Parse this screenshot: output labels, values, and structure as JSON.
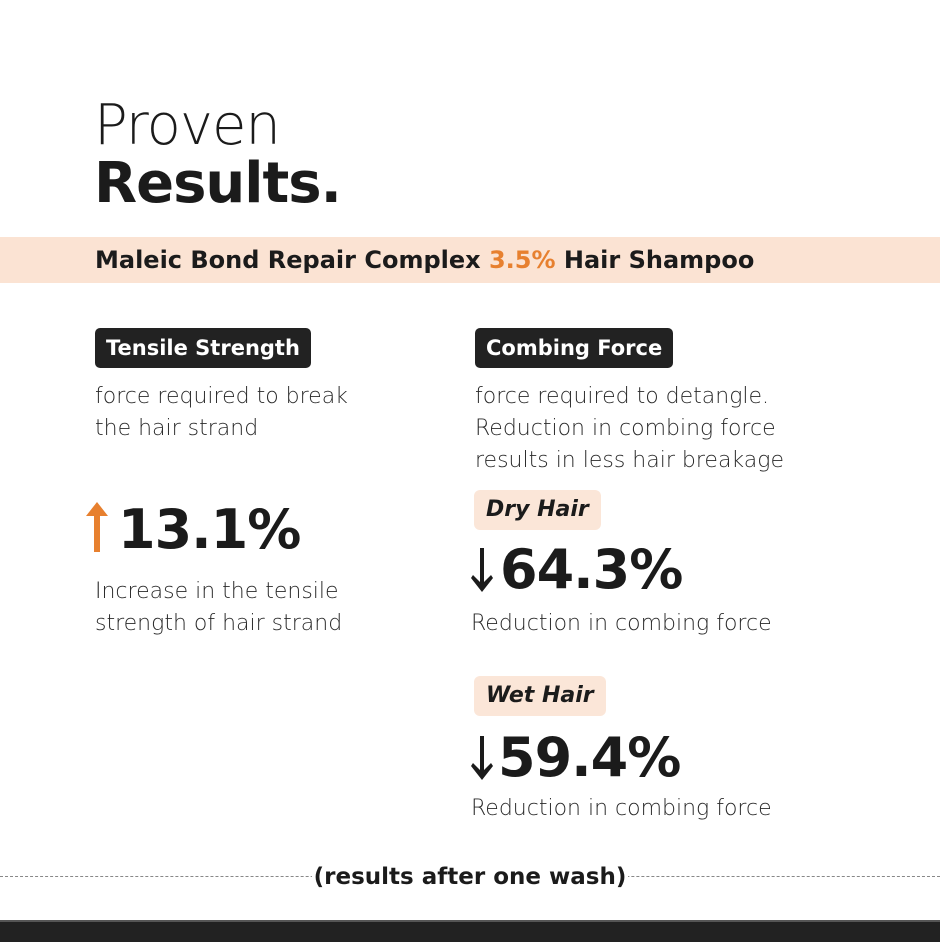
{
  "heading": {
    "line1": "Proven",
    "line2": "Results."
  },
  "product": {
    "prefix": "Maleic Bond Repair Complex ",
    "concentration": "3.5%",
    "suffix": " Hair Shampoo"
  },
  "colors": {
    "accent": "#e7802f",
    "band": "#fbe3d3",
    "badge": "#222222"
  },
  "tensile": {
    "badge": "Tensile Strength",
    "desc_lines": [
      "force required to break",
      "the hair strand"
    ],
    "arrow_icon": "arrow-up-icon",
    "value": "13.1%",
    "caption_lines": [
      "Increase in the tensile",
      "strength of hair strand"
    ]
  },
  "combing": {
    "badge": "Combing Force",
    "desc_lines": [
      "force required to detangle.",
      "Reduction in combing force",
      "results in less hair breakage"
    ],
    "dry": {
      "label": "Dry Hair",
      "arrow_icon": "arrow-down-icon",
      "value": "64.3%",
      "caption": "Reduction in combing force"
    },
    "wet": {
      "label": "Wet Hair",
      "arrow_icon": "arrow-down-icon",
      "value": "59.4%",
      "caption": "Reduction in combing force"
    }
  },
  "footer": {
    "note": "(results after one wash)"
  }
}
